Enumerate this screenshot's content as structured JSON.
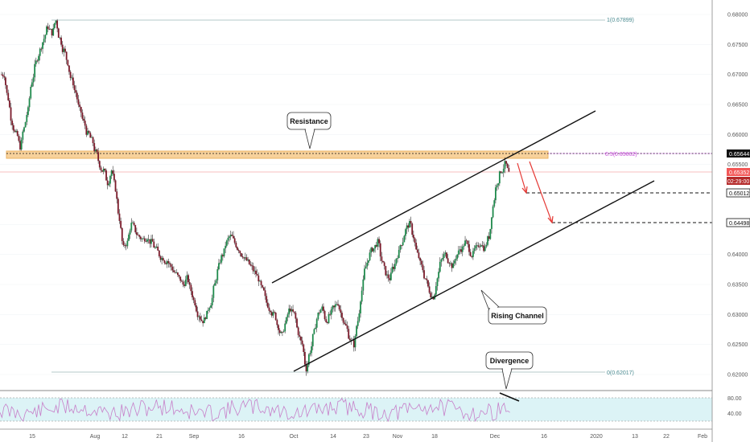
{
  "chart_data": {
    "type": "candlestick",
    "price_axis": {
      "ticks": [
        "0.68000",
        "0.67500",
        "0.67000",
        "0.66500",
        "0.66000",
        "0.65500",
        "0.64500",
        "0.64000",
        "0.63500",
        "0.63000",
        "0.62500",
        "0.62000"
      ],
      "range": [
        0.618,
        0.682
      ]
    },
    "time_axis": {
      "ticks": [
        "15",
        "Aug",
        "12",
        "21",
        "Sep",
        "16",
        "Oct",
        "14",
        "23",
        "Nov",
        "18",
        "Dec",
        "16",
        "2020",
        "13",
        "22",
        "Feb"
      ]
    },
    "price_badges": [
      {
        "label": "0.65644",
        "value": 0.65644,
        "style": "black"
      },
      {
        "label": "0.65352",
        "value": 0.65352,
        "style": "red"
      },
      {
        "label": "02:29:00",
        "value": 0.6523,
        "style": "darkred"
      },
      {
        "label": "0.65012",
        "value": 0.65012,
        "style": "white"
      },
      {
        "label": "0.64498",
        "value": 0.64498,
        "style": "white"
      }
    ],
    "fibonacci": [
      {
        "label": "1(0.67899)",
        "value": 0.67899
      },
      {
        "label": "0(0.62017)",
        "value": 0.62017
      },
      {
        "label": "0.5(0.65602)",
        "value": 0.65602
      }
    ],
    "resistance_zone": {
      "low": 0.6557,
      "high": 0.6568
    },
    "dashed_targets": [
      0.65012,
      0.64498
    ],
    "rising_channel": {
      "upper": [
        [
          "Sep 26",
          0.635
        ],
        [
          "Jan 2",
          0.664
        ]
      ],
      "lower": [
        [
          "Oct 1",
          0.6205
        ],
        [
          "Jan 12",
          0.65
        ]
      ]
    },
    "annotations": [
      "Resistance",
      "Rising Channel",
      "Divergence"
    ],
    "ohlc_closes": [
      0.67,
      0.666,
      0.662,
      0.66,
      0.658,
      0.661,
      0.664,
      0.669,
      0.672,
      0.674,
      0.676,
      0.678,
      0.677,
      0.679,
      0.676,
      0.674,
      0.672,
      0.669,
      0.667,
      0.664,
      0.662,
      0.66,
      0.659,
      0.657,
      0.655,
      0.654,
      0.652,
      0.654,
      0.651,
      0.646,
      0.641,
      0.642,
      0.645,
      0.644,
      0.643,
      0.6425,
      0.643,
      0.642,
      0.641,
      0.64,
      0.6395,
      0.639,
      0.638,
      0.637,
      0.636,
      0.635,
      0.636,
      0.634,
      0.632,
      0.63,
      0.629,
      0.63,
      0.632,
      0.635,
      0.638,
      0.64,
      0.642,
      0.643,
      0.642,
      0.641,
      0.64,
      0.639,
      0.638,
      0.637,
      0.636,
      0.634,
      0.632,
      0.631,
      0.63,
      0.628,
      0.6265,
      0.629,
      0.631,
      0.63,
      0.627,
      0.625,
      0.621,
      0.624,
      0.627,
      0.63,
      0.631,
      0.629,
      0.63,
      0.631,
      0.632,
      0.63,
      0.628,
      0.626,
      0.625,
      0.629,
      0.634,
      0.638,
      0.64,
      0.641,
      0.642,
      0.639,
      0.637,
      0.636,
      0.638,
      0.64,
      0.642,
      0.644,
      0.645,
      0.643,
      0.64,
      0.638,
      0.636,
      0.634,
      0.633,
      0.636,
      0.639,
      0.64,
      0.639,
      0.638,
      0.64,
      0.641,
      0.642,
      0.641,
      0.64,
      0.641,
      0.642,
      0.641,
      0.643,
      0.648,
      0.652,
      0.654,
      0.655,
      0.6535
    ]
  },
  "rsi": {
    "levels": [
      "80.00",
      "40.00"
    ]
  }
}
